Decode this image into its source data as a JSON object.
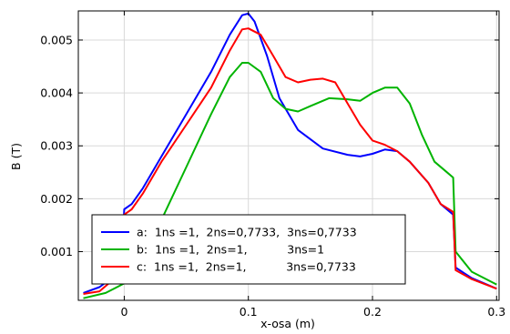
{
  "chart_data": {
    "type": "line",
    "title": "",
    "xlabel": "x-osa (m)",
    "ylabel": "B (T)",
    "xlim": [
      -0.037,
      0.302
    ],
    "ylim": [
      8e-05,
      0.00555
    ],
    "xticks": [
      0,
      0.1,
      0.2,
      0.3
    ],
    "xtick_labels": [
      "0",
      "0.1",
      "0.2",
      "0.3"
    ],
    "yticks": [
      0.001,
      0.002,
      0.003,
      0.004,
      0.005
    ],
    "ytick_labels": [
      "0.001",
      "0.002",
      "0.003",
      "0.004",
      "0.005"
    ],
    "grid": true,
    "legend_position": "lower-left",
    "series": [
      {
        "name": "a:  1ns =1,  2ns=0,7733,  3ns=0,7733",
        "color": "#0000ff",
        "points": [
          [
            -0.033,
            0.00022
          ],
          [
            -0.02,
            0.00033
          ],
          [
            -0.01,
            0.0005
          ],
          [
            -0.002,
            0.00075
          ],
          [
            0,
            0.0018
          ],
          [
            0.006,
            0.0019
          ],
          [
            0.015,
            0.0022
          ],
          [
            0.03,
            0.0028
          ],
          [
            0.05,
            0.0036
          ],
          [
            0.07,
            0.0044
          ],
          [
            0.085,
            0.0051
          ],
          [
            0.095,
            0.00547
          ],
          [
            0.1,
            0.0055
          ],
          [
            0.105,
            0.00535
          ],
          [
            0.115,
            0.0047
          ],
          [
            0.125,
            0.0039
          ],
          [
            0.14,
            0.0033
          ],
          [
            0.16,
            0.00295
          ],
          [
            0.18,
            0.00283
          ],
          [
            0.19,
            0.0028
          ],
          [
            0.2,
            0.00285
          ],
          [
            0.21,
            0.00293
          ],
          [
            0.22,
            0.0029
          ],
          [
            0.23,
            0.0027
          ],
          [
            0.245,
            0.0023
          ],
          [
            0.255,
            0.0019
          ],
          [
            0.265,
            0.0017
          ],
          [
            0.267,
            0.0007
          ],
          [
            0.28,
            0.0005
          ],
          [
            0.3,
            0.0003
          ]
        ]
      },
      {
        "name": "b:  1ns =1,  2ns=1,           3ns=1",
        "color": "#00b400",
        "points": [
          [
            -0.033,
            0.00012
          ],
          [
            -0.015,
            0.00022
          ],
          [
            0,
            0.0004
          ],
          [
            0.015,
            0.0009
          ],
          [
            0.03,
            0.0016
          ],
          [
            0.05,
            0.0026
          ],
          [
            0.07,
            0.0036
          ],
          [
            0.085,
            0.0043
          ],
          [
            0.095,
            0.00457
          ],
          [
            0.1,
            0.00457
          ],
          [
            0.11,
            0.0044
          ],
          [
            0.12,
            0.0039
          ],
          [
            0.13,
            0.0037
          ],
          [
            0.14,
            0.00365
          ],
          [
            0.15,
            0.00375
          ],
          [
            0.165,
            0.0039
          ],
          [
            0.18,
            0.00388
          ],
          [
            0.19,
            0.00385
          ],
          [
            0.2,
            0.004
          ],
          [
            0.21,
            0.0041
          ],
          [
            0.22,
            0.0041
          ],
          [
            0.23,
            0.0038
          ],
          [
            0.24,
            0.0032
          ],
          [
            0.25,
            0.0027
          ],
          [
            0.26,
            0.0025
          ],
          [
            0.265,
            0.0024
          ],
          [
            0.267,
            0.001
          ],
          [
            0.28,
            0.00062
          ],
          [
            0.3,
            0.00038
          ]
        ]
      },
      {
        "name": "c:  1ns =1,  2ns=1,           3ns=0,7733",
        "color": "#ff0000",
        "points": [
          [
            -0.033,
            0.0002
          ],
          [
            -0.02,
            0.00025
          ],
          [
            -0.01,
            0.00045
          ],
          [
            -0.002,
            0.00065
          ],
          [
            0,
            0.0017
          ],
          [
            0.006,
            0.0018
          ],
          [
            0.015,
            0.0021
          ],
          [
            0.03,
            0.0027
          ],
          [
            0.05,
            0.0034
          ],
          [
            0.07,
            0.0041
          ],
          [
            0.085,
            0.0048
          ],
          [
            0.095,
            0.0052
          ],
          [
            0.1,
            0.00522
          ],
          [
            0.11,
            0.0051
          ],
          [
            0.12,
            0.0047
          ],
          [
            0.13,
            0.0043
          ],
          [
            0.14,
            0.0042
          ],
          [
            0.15,
            0.00425
          ],
          [
            0.16,
            0.00427
          ],
          [
            0.17,
            0.0042
          ],
          [
            0.18,
            0.0038
          ],
          [
            0.19,
            0.0034
          ],
          [
            0.2,
            0.0031
          ],
          [
            0.21,
            0.00302
          ],
          [
            0.22,
            0.0029
          ],
          [
            0.23,
            0.0027
          ],
          [
            0.245,
            0.0023
          ],
          [
            0.255,
            0.0019
          ],
          [
            0.265,
            0.00175
          ],
          [
            0.267,
            0.00065
          ],
          [
            0.28,
            0.00048
          ],
          [
            0.3,
            0.0003
          ]
        ]
      }
    ]
  }
}
